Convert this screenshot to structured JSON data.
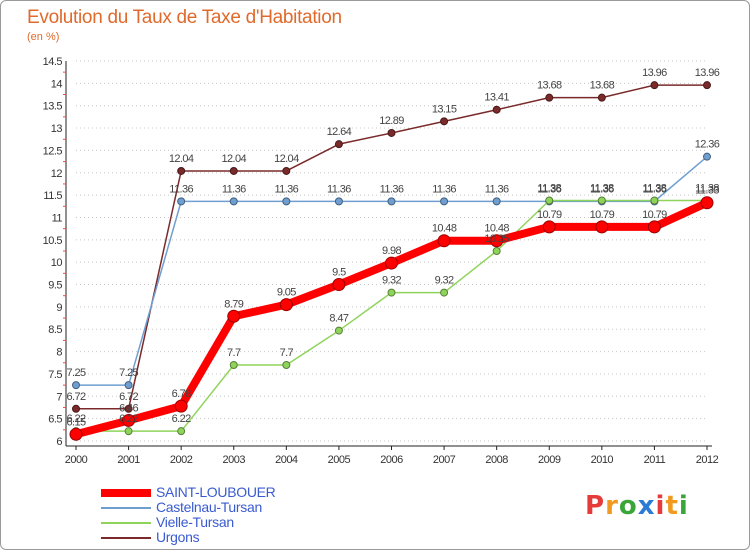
{
  "title": "Evolution du Taux de Taxe d'Habitation",
  "unit_label": "(en %)",
  "logo": {
    "text": "Proxiti",
    "colors": [
      "#e63b3b",
      "#f29a1f",
      "#3aa63a",
      "#2b7bd6",
      "#e63b3b",
      "#f29a1f",
      "#3aa63a"
    ]
  },
  "chart_data": {
    "type": "line",
    "title": "Evolution du Taux de Taxe d'Habitation",
    "ylabel": "(en %)",
    "xlabel": "",
    "x": [
      "2000",
      "2001",
      "2002",
      "2003",
      "2004",
      "2005",
      "2006",
      "2007",
      "2008",
      "2009",
      "2010",
      "2011",
      "2012"
    ],
    "ylim": [
      6,
      14.5
    ],
    "yticks": [
      "6",
      "6.5",
      "7",
      "7.5",
      "8",
      "8.5",
      "9",
      "9.5",
      "10",
      "10.5",
      "11",
      "11.5",
      "12",
      "12.5",
      "13",
      "13.5",
      "14",
      "14.5"
    ],
    "grid": "horizontal dotted",
    "legend": "bottom-left",
    "series": [
      {
        "name": "Urgons",
        "color": "#7a2a2a",
        "values": [
          6.72,
          6.72,
          12.04,
          12.04,
          12.04,
          12.64,
          12.89,
          13.15,
          13.41,
          13.68,
          13.68,
          13.96,
          13.96
        ],
        "labels": [
          "6.72",
          "6.72",
          "12.04",
          "12.04",
          "12.04",
          "12.64",
          "12.89",
          "13.15",
          "13.41",
          "13.68",
          "13.68",
          "13.96",
          "13.96"
        ]
      },
      {
        "name": "Castelnau-Tursan",
        "color": "#6f9fd0",
        "values": [
          7.25,
          7.25,
          11.36,
          11.36,
          11.36,
          11.36,
          11.36,
          11.36,
          11.36,
          11.36,
          11.36,
          11.36,
          12.36
        ],
        "labels": [
          "7.25",
          "7.25",
          "11.36",
          "11.36",
          "11.36",
          "11.36",
          "11.36",
          "11.36",
          "11.36",
          "11.36",
          "11.36",
          "11.36",
          "12.36"
        ]
      },
      {
        "name": "Vielle-Tursan",
        "color": "#8fd45a",
        "values": [
          6.22,
          6.22,
          6.22,
          7.7,
          7.7,
          8.47,
          9.32,
          9.32,
          10.25,
          11.38,
          11.38,
          11.38,
          11.38
        ],
        "labels": [
          "6.22",
          "6.22",
          "6.22",
          "7.7",
          "7.7",
          "8.47",
          "9.32",
          "9.32",
          "10.25",
          "11.38",
          "11.38",
          "11.38",
          "11.38"
        ]
      },
      {
        "name": "SAINT-LOUBOUER",
        "color": "#ff0000",
        "values": [
          6.15,
          6.46,
          6.78,
          8.79,
          9.05,
          9.5,
          9.98,
          10.48,
          10.48,
          10.79,
          10.79,
          10.79,
          11.33
        ],
        "labels": [
          "6.15",
          "6.46",
          "6.78",
          "8.79",
          "9.05",
          "9.5",
          "9.98",
          "10.48",
          "10.48",
          "10.79",
          "10.79",
          "10.79",
          "11.33"
        ]
      }
    ],
    "legend_order": [
      "SAINT-LOUBOUER",
      "Castelnau-Tursan",
      "Vielle-Tursan",
      "Urgons"
    ]
  }
}
